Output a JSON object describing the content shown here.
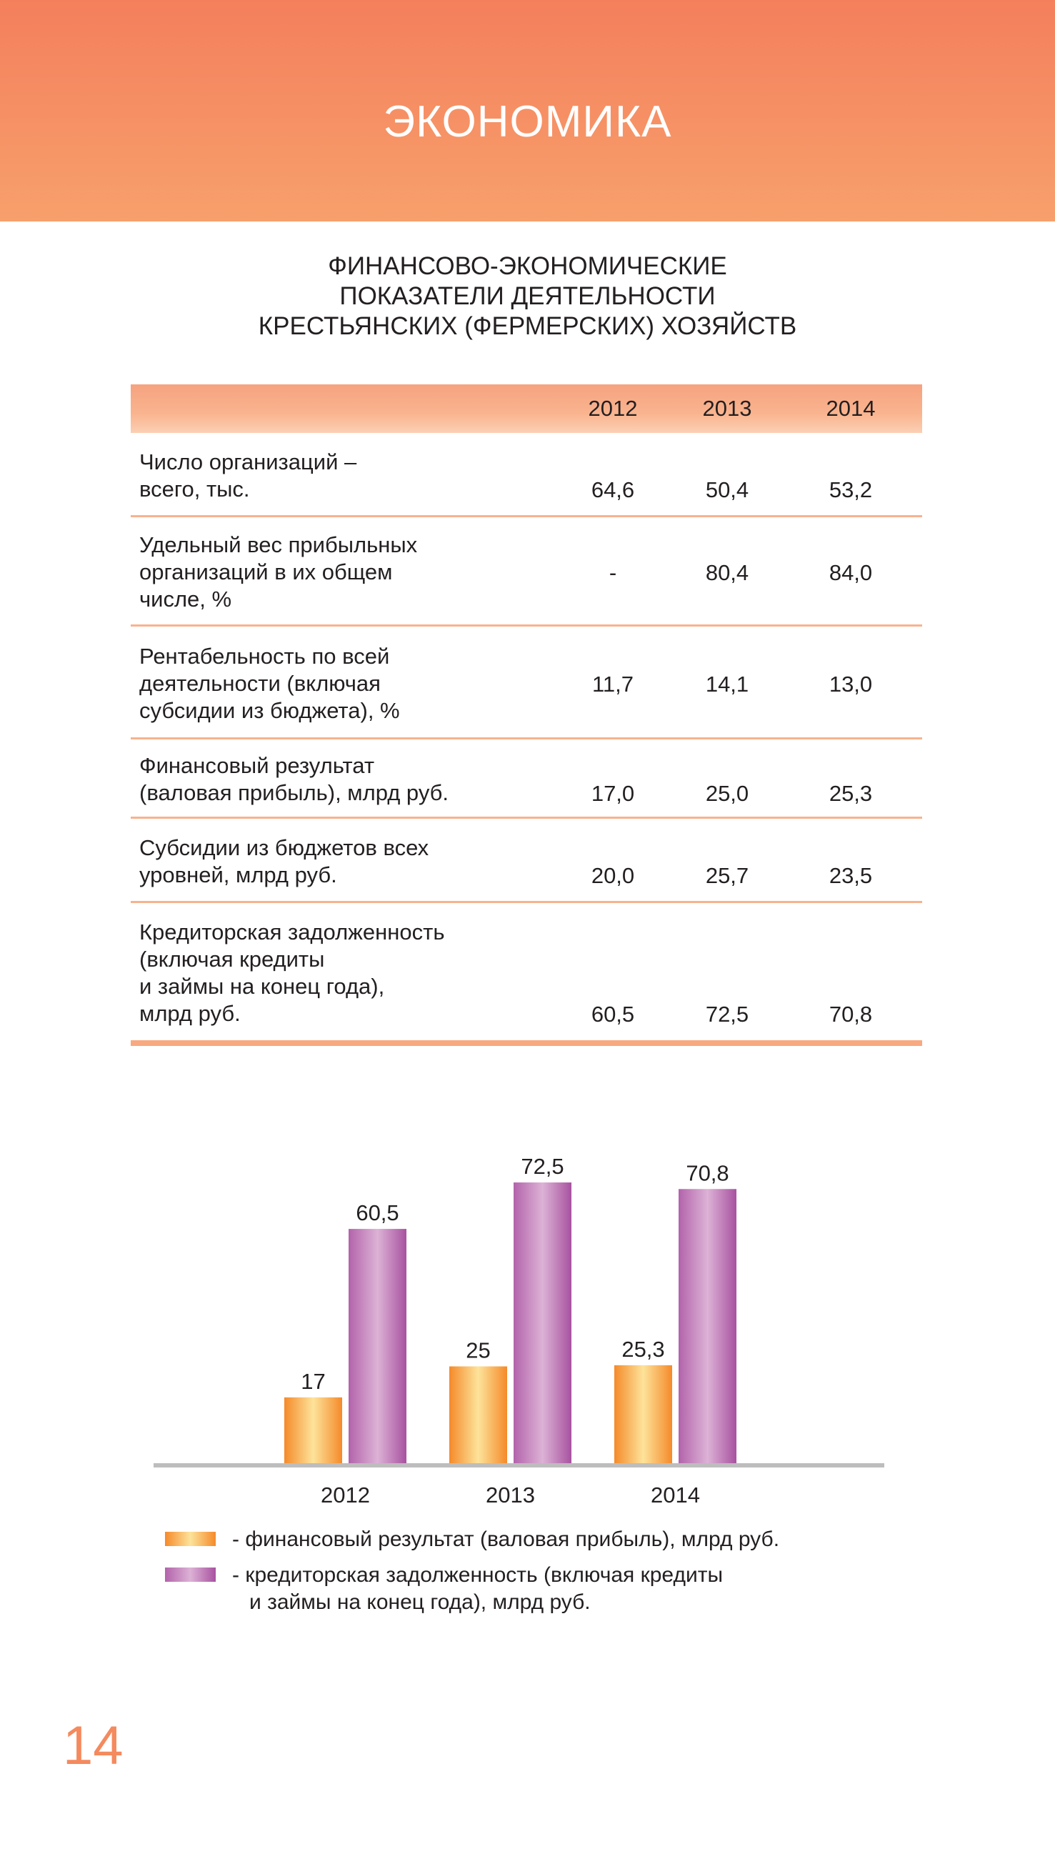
{
  "header": {
    "title": "ЭКОНОМИКА"
  },
  "document": {
    "title_lines": [
      "ФИНАНСОВО-ЭКОНОМИЧЕСКИЕ",
      "ПОКАЗАТЕЛИ ДЕЯТЕЛЬНОСТИ",
      "КРЕСТЬЯНСКИХ (ФЕРМЕРСКИХ) ХОЗЯЙСТВ"
    ]
  },
  "table": {
    "columns": [
      "2012",
      "2013",
      "2014"
    ],
    "rows": [
      {
        "label": [
          "Число организаций –",
          "всего, тыс."
        ],
        "values": [
          "64,6",
          "50,4",
          "53,2"
        ]
      },
      {
        "label": [
          "Удельный вес прибыльных",
          "организаций в их общем",
          "числе, %"
        ],
        "values": [
          "-",
          "80,4",
          "84,0"
        ]
      },
      {
        "label": [
          "Рентабельность по всей",
          "деятельности (включая",
          "субсидии из бюджета), %"
        ],
        "values": [
          "11,7",
          "14,1",
          "13,0"
        ]
      },
      {
        "label": [
          "Финансовый результат",
          "(валовая прибыль), млрд руб."
        ],
        "values": [
          "17,0",
          "25,0",
          "25,3"
        ]
      },
      {
        "label": [
          "Субсидии из бюджетов всех",
          "уровней, млрд руб."
        ],
        "values": [
          "20,0",
          "25,7",
          "23,5"
        ]
      },
      {
        "label": [
          "Кредиторская задолженность",
          "(включая кредиты",
          "и займы на конец года),",
          "млрд руб."
        ],
        "values": [
          "60,5",
          "72,5",
          "70,8"
        ]
      }
    ]
  },
  "chart_data": {
    "type": "bar",
    "categories": [
      "2012",
      "2013",
      "2014"
    ],
    "series": [
      {
        "name": "- финансовый результат (валовая прибыль), млрд руб.",
        "values": [
          17,
          25,
          25.3
        ],
        "labels": [
          "17",
          "25",
          "25,3"
        ],
        "color": "#f7932f"
      },
      {
        "name_lines": [
          "- кредиторская задолженность (включая кредиты",
          "и займы на конец года), млрд руб."
        ],
        "values": [
          60.5,
          72.5,
          70.8
        ],
        "labels": [
          "60,5",
          "72,5",
          "70,8"
        ],
        "color": "#b565ad"
      }
    ],
    "ylim": [
      0,
      80
    ],
    "grid": false,
    "legend_position": "bottom-left"
  },
  "page_number": "14"
}
